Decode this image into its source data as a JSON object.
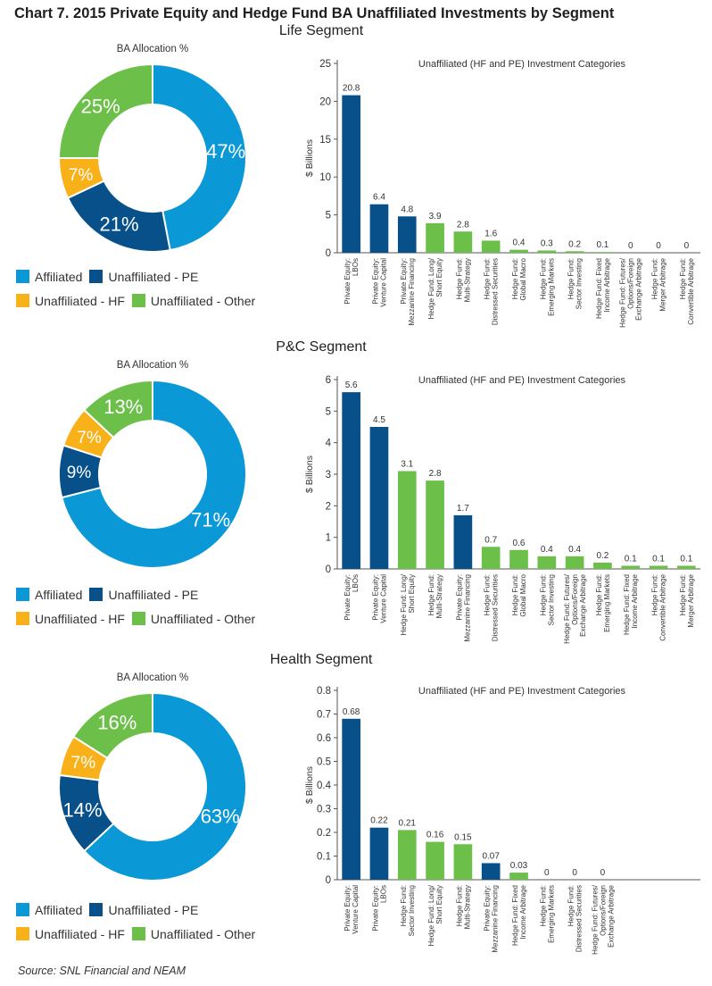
{
  "title": "Chart 7. 2015 Private Equity and Hedge Fund BA Unaffiliated Investments by Segment",
  "source": "Source: SNL Financial and NEAM",
  "colors": {
    "affiliated": "#0a98d6",
    "unaffiliated_pe": "#07508a",
    "unaffiliated_hf": "#f9b11a",
    "unaffiliated_other": "#6cc04a",
    "hedge_fund_bar": "#6cc04a",
    "private_equity_bar": "#07508a"
  },
  "legend": {
    "affiliated": "Affiliated",
    "unaffiliated_pe": "Unaffiliated - PE",
    "unaffiliated_hf": "Unaffiliated - HF",
    "unaffiliated_other": "Unaffiliated - Other"
  },
  "segments": [
    {
      "title": "Life Segment"
    },
    {
      "title": "P&C Segment"
    },
    {
      "title": "Health Segment"
    }
  ],
  "chart_data": [
    {
      "type": "pie",
      "segment": "Life Segment",
      "title": "BA Allocation %",
      "categories": [
        "Affiliated",
        "Unaffiliated - PE",
        "Unaffiliated - HF",
        "Unaffiliated - Other"
      ],
      "values": [
        47,
        21,
        7,
        25
      ],
      "labels": [
        "47%",
        "21%",
        "7%",
        "25%"
      ]
    },
    {
      "type": "bar",
      "segment": "Life Segment",
      "title": "Unaffiliated (HF and PE) Investment Categories",
      "ylabel": "$ Billions",
      "ylim": [
        0,
        25
      ],
      "yticks": [
        0,
        5,
        10,
        15,
        20,
        25
      ],
      "categories": [
        [
          "Private Equity:",
          "LBOs"
        ],
        [
          "Private Equity:",
          "Venture Capital"
        ],
        [
          "Private Equity:",
          "Mezzanine Financing"
        ],
        [
          "Hedge Fund: Long/",
          "Short Equity"
        ],
        [
          "Hedge Fund:",
          "Multi-Strategy"
        ],
        [
          "Hedge Fund:",
          "Distressed Securities"
        ],
        [
          "Hedge Fund:",
          "Global Macro"
        ],
        [
          "Hedge Fund:",
          "Emerging Markets"
        ],
        [
          "Hedge Fund:",
          "Sector Investing"
        ],
        [
          "Hedge Fund: Fixed",
          "Income Arbitrage"
        ],
        [
          "Hedge Fund: Futures/",
          "Options/Foreign",
          "Exchange Arbitrage"
        ],
        [
          "Hedge Fund:",
          "Merger Arbitrage"
        ],
        [
          "Hedge Fund:",
          "Convertible Arbitrage"
        ]
      ],
      "values": [
        20.8,
        6.4,
        4.8,
        3.9,
        2.8,
        1.6,
        0.4,
        0.3,
        0.2,
        0.1,
        0,
        0,
        0
      ],
      "labels": [
        "20.8",
        "6.4",
        "4.8",
        "3.9",
        "2.8",
        "1.6",
        "0.4",
        "0.3",
        "0.2",
        "0.1",
        "0",
        "0",
        "0"
      ],
      "kinds": [
        "PE",
        "PE",
        "PE",
        "HF",
        "HF",
        "HF",
        "HF",
        "HF",
        "HF",
        "HF",
        "HF",
        "HF",
        "HF"
      ]
    },
    {
      "type": "pie",
      "segment": "P&C Segment",
      "title": "BA Allocation %",
      "categories": [
        "Affiliated",
        "Unaffiliated - PE",
        "Unaffiliated - HF",
        "Unaffiliated - Other"
      ],
      "values": [
        71,
        9,
        7,
        13
      ],
      "labels": [
        "71%",
        "9%",
        "7%",
        "13%"
      ]
    },
    {
      "type": "bar",
      "segment": "P&C Segment",
      "title": "Unaffiliated (HF and PE) Investment Categories",
      "ylabel": "$ Billions",
      "ylim": [
        0,
        6
      ],
      "yticks": [
        0,
        1,
        2,
        3,
        4,
        5,
        6
      ],
      "categories": [
        [
          "Private Equity:",
          "LBOs"
        ],
        [
          "Private Equity:",
          "Venture Capital"
        ],
        [
          "Hedge Fund: Long/",
          "Short Equity"
        ],
        [
          "Hedge Fund:",
          "Multi-Strategy"
        ],
        [
          "Private Equity:",
          "Mezzanine Financing"
        ],
        [
          "Hedge Fund:",
          "Distressed Securities"
        ],
        [
          "Hedge Fund:",
          "Global Macro"
        ],
        [
          "Hedge Fund:",
          "Sector Investing"
        ],
        [
          "Hedge Fund: Futures/",
          "Options/Foreign",
          "Exchange Arbitrage"
        ],
        [
          "Hedge Fund:",
          "Emerging Markets"
        ],
        [
          "Hedge Fund: Fixed",
          "Income Arbitrage"
        ],
        [
          "Hedge Fund:",
          "Convertible Arbitrage"
        ],
        [
          "Hedge Fund:",
          "Merger Arbitrage"
        ]
      ],
      "values": [
        5.6,
        4.5,
        3.1,
        2.8,
        1.7,
        0.7,
        0.6,
        0.4,
        0.4,
        0.2,
        0.1,
        0.1,
        0.1
      ],
      "labels": [
        "5.6",
        "4.5",
        "3.1",
        "2.8",
        "1.7",
        "0.7",
        "0.6",
        "0.4",
        "0.4",
        "0.2",
        "0.1",
        "0.1",
        "0.1"
      ],
      "kinds": [
        "PE",
        "PE",
        "HF",
        "HF",
        "PE",
        "HF",
        "HF",
        "HF",
        "HF",
        "HF",
        "HF",
        "HF",
        "HF"
      ]
    },
    {
      "type": "pie",
      "segment": "Health Segment",
      "title": "BA Allocation %",
      "categories": [
        "Affiliated",
        "Unaffiliated - PE",
        "Unaffiliated - HF",
        "Unaffiliated - Other"
      ],
      "values": [
        63,
        14,
        7,
        16
      ],
      "labels": [
        "63%",
        "14%",
        "7%",
        "16%"
      ]
    },
    {
      "type": "bar",
      "segment": "Health Segment",
      "title": "Unaffiliated (HF and PE) Investment Categories",
      "ylabel": "$ Billions",
      "ylim": [
        0,
        0.8
      ],
      "yticks": [
        0,
        0.1,
        0.2,
        0.3,
        0.4,
        0.5,
        0.6,
        0.7,
        0.8
      ],
      "categories": [
        [
          "Private Equity:",
          "Venture Capital"
        ],
        [
          "Private Equity:",
          "LBOs"
        ],
        [
          "Hedge Fund:",
          "Sector Investing"
        ],
        [
          "Hedge Fund: Long/",
          "Short Equity"
        ],
        [
          "Hedge Fund:",
          "Multi-Strategy"
        ],
        [
          "Private Equity:",
          "Mezzanine Financing"
        ],
        [
          "Hedge Fund: Fixed",
          "Income Arbitrage"
        ],
        [
          "Hedge Fund:",
          "Emerging Markets"
        ],
        [
          "Hedge Fund:",
          "Distressed Securities"
        ],
        [
          "Hedge Fund: Futures/",
          "Options/Foreign",
          "Exchange Arbitrage"
        ]
      ],
      "values": [
        0.68,
        0.22,
        0.21,
        0.16,
        0.15,
        0.07,
        0.03,
        0,
        0,
        0
      ],
      "labels": [
        "0.68",
        "0.22",
        "0.21",
        "0.16",
        "0.15",
        "0.07",
        "0.03",
        "0",
        "0",
        "0"
      ],
      "kinds": [
        "PE",
        "PE",
        "HF",
        "HF",
        "HF",
        "PE",
        "HF",
        "HF",
        "HF",
        "HF"
      ]
    }
  ]
}
